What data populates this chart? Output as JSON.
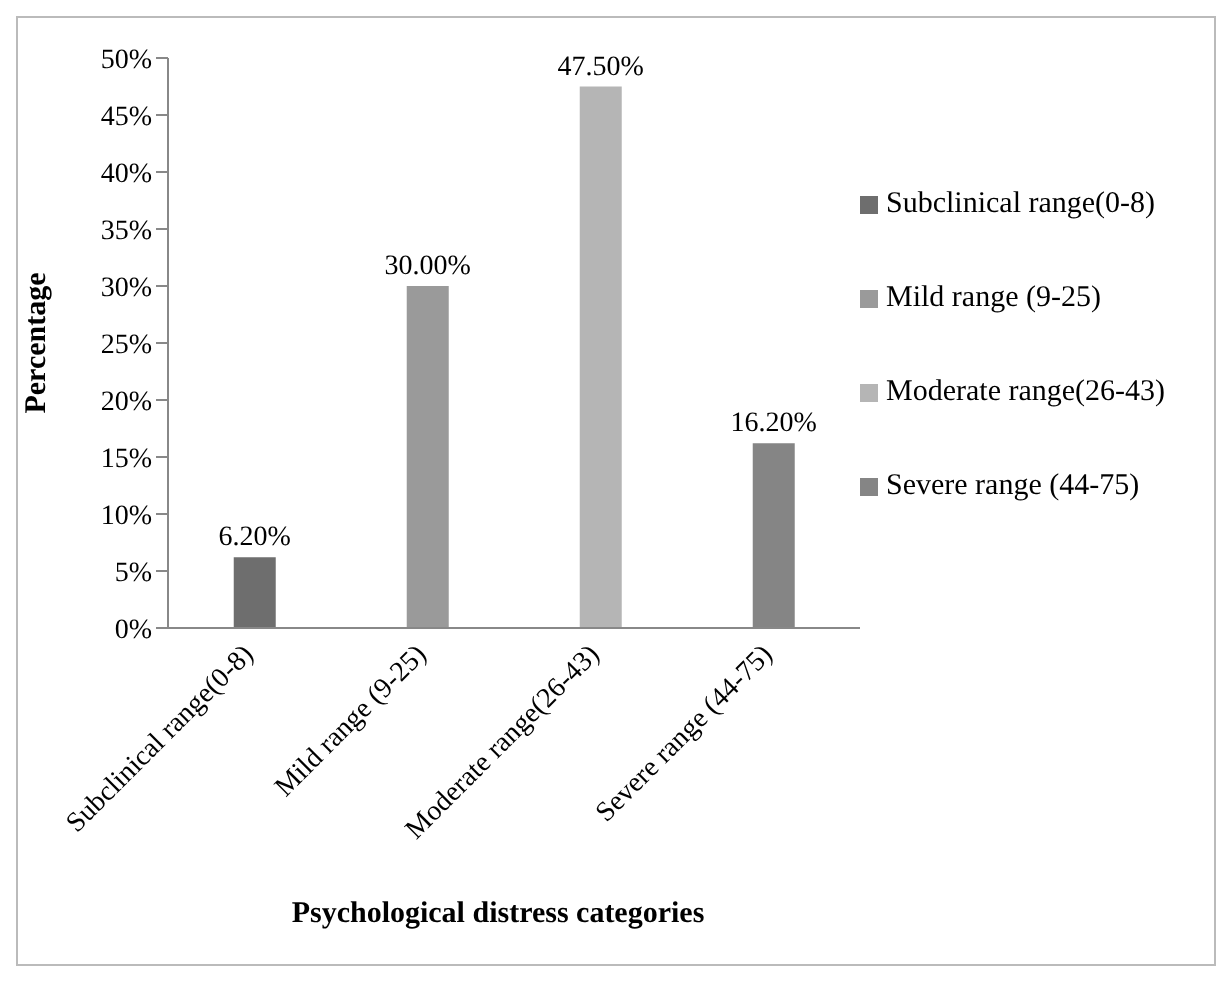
{
  "chart_data": {
    "type": "bar",
    "xlabel": "Psychological distress categories",
    "ylabel": "Percentage",
    "categories": [
      "Subclinical range(0-8)",
      "Mild range (9-25)",
      "Moderate range(26-43)",
      "Severe range (44-75)"
    ],
    "series": [
      {
        "name": "Subclinical range(0-8)",
        "color": "#6e6e6e",
        "values": [
          6.2,
          null,
          null,
          null
        ],
        "value_labels": [
          "6.20%",
          null,
          null,
          null
        ]
      },
      {
        "name": "Mild range (9-25)",
        "color": "#9a9a9a",
        "values": [
          null,
          30.0,
          null,
          null
        ],
        "value_labels": [
          null,
          "30.00%",
          null,
          null
        ]
      },
      {
        "name": "Moderate range(26-43)",
        "color": "#b5b5b5",
        "values": [
          null,
          null,
          47.5,
          null
        ],
        "value_labels": [
          null,
          null,
          "47.50%",
          null
        ]
      },
      {
        "name": "Severe range (44-75)",
        "color": "#858585",
        "values": [
          null,
          null,
          null,
          16.2
        ],
        "value_labels": [
          null,
          null,
          null,
          "16.20%"
        ]
      }
    ],
    "stacked": true,
    "ylim": [
      0,
      50
    ],
    "yticks": [
      {
        "value": 0,
        "label": "0%"
      },
      {
        "value": 5,
        "label": "5%"
      },
      {
        "value": 10,
        "label": "10%"
      },
      {
        "value": 15,
        "label": "15%"
      },
      {
        "value": 20,
        "label": "20%"
      },
      {
        "value": 25,
        "label": "25%"
      },
      {
        "value": 30,
        "label": "30%"
      },
      {
        "value": 35,
        "label": "35%"
      },
      {
        "value": 40,
        "label": "40%"
      },
      {
        "value": 45,
        "label": "45%"
      },
      {
        "value": 50,
        "label": "50%"
      }
    ],
    "legend": "right"
  }
}
